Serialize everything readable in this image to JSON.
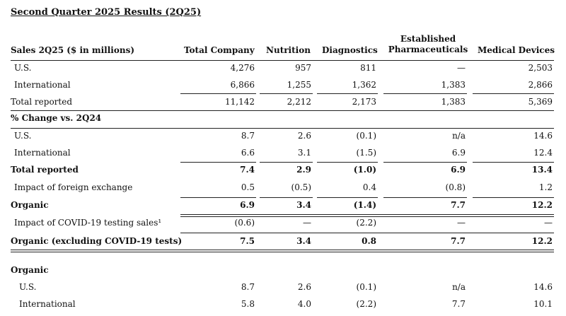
{
  "title": "Second Quarter 2025 Results (2Q25)",
  "header": {
    "row_label": "Sales 2Q25 ($ in millions)",
    "columns": [
      "Total Company",
      "Nutrition",
      "Diagnostics",
      "Established Pharmaceuticals",
      "Medical Devices"
    ],
    "col4_line1": "Established",
    "col4_line2": "Pharmaceuticals"
  },
  "sales": [
    {
      "label": "U.S.",
      "values": [
        "4,276",
        "957",
        "811",
        "—",
        "2,503"
      ]
    },
    {
      "label": "International",
      "values": [
        "6,866",
        "1,255",
        "1,362",
        "1,383",
        "2,866"
      ]
    },
    {
      "label": "Total reported",
      "values": [
        "11,142",
        "2,212",
        "2,173",
        "1,383",
        "5,369"
      ]
    }
  ],
  "change_header": "% Change vs. 2Q24",
  "change": [
    {
      "label": "U.S.",
      "values": [
        "8.7",
        "2.6",
        "(0.1)",
        "n/a",
        "14.6"
      ],
      "bold": false
    },
    {
      "label": "International",
      "values": [
        "6.6",
        "3.1",
        "(1.5)",
        "6.9",
        "12.4"
      ],
      "bold": false
    },
    {
      "label": "Total reported",
      "values": [
        "7.4",
        "2.9",
        "(1.0)",
        "6.9",
        "13.4"
      ],
      "bold": true
    },
    {
      "label": "Impact of foreign exchange",
      "values": [
        "0.5",
        "(0.5)",
        "0.4",
        "(0.8)",
        "1.2"
      ],
      "bold": false
    },
    {
      "label": "Organic",
      "values": [
        "6.9",
        "3.4",
        "(1.4)",
        "7.7",
        "12.2"
      ],
      "bold": true
    },
    {
      "label": "Impact of COVID-19 testing sales¹",
      "values": [
        "(0.6)",
        "—",
        "(2.2)",
        "—",
        "—"
      ],
      "bold": false
    },
    {
      "label": "Organic (excluding COVID-19 tests)",
      "values": [
        "7.5",
        "3.4",
        "0.8",
        "7.7",
        "12.2"
      ],
      "bold": true
    }
  ],
  "organic_header": "Organic",
  "organic": [
    {
      "label": "U.S.",
      "values": [
        "8.7",
        "2.6",
        "(0.1)",
        "n/a",
        "14.6"
      ]
    },
    {
      "label": "International",
      "values": [
        "5.8",
        "4.0",
        "(2.2)",
        "7.7",
        "10.1"
      ]
    }
  ]
}
